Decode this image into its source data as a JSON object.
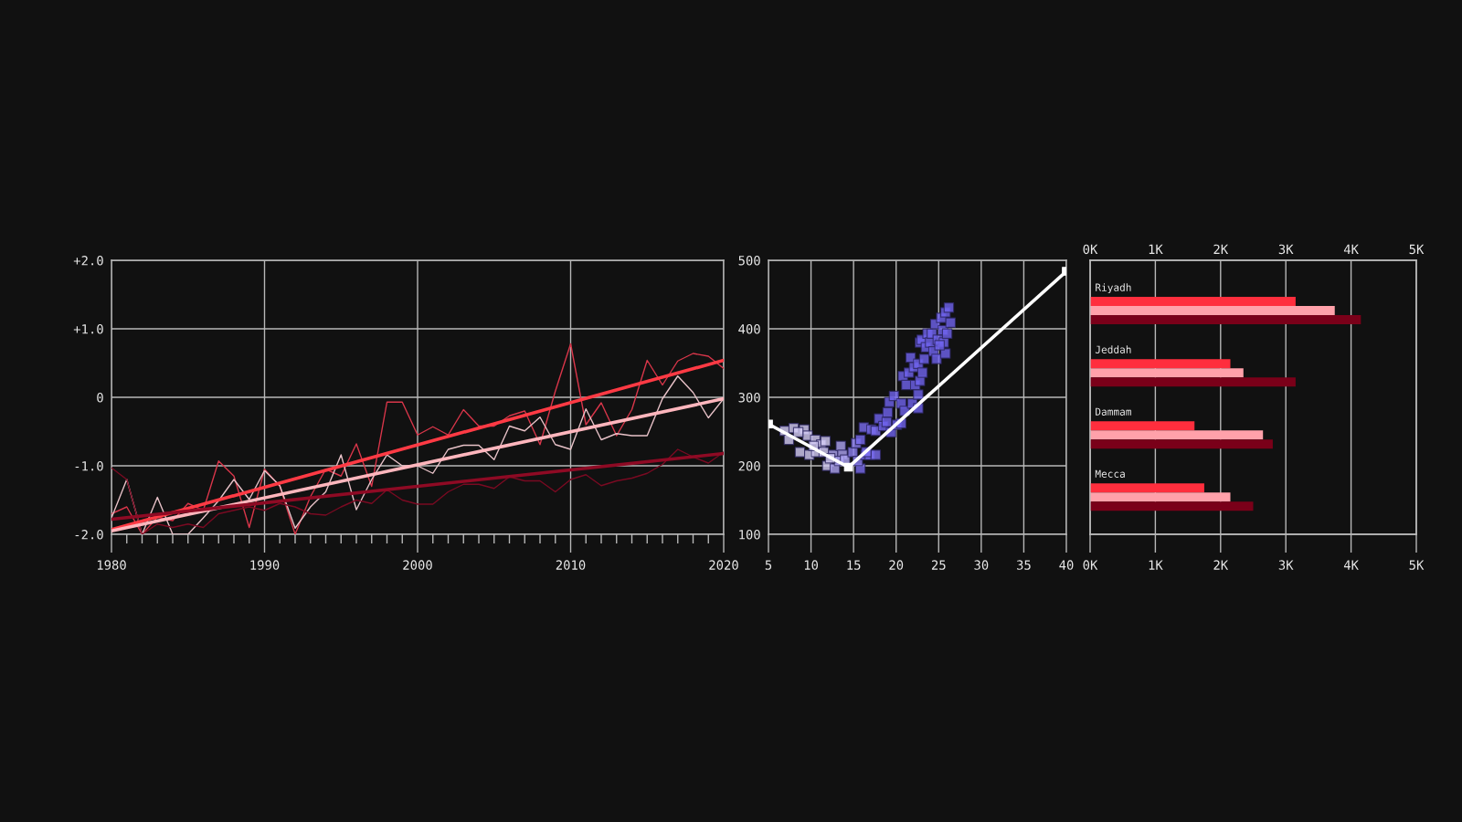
{
  "chart_data": [
    {
      "type": "line",
      "x": [
        1980,
        1981,
        1982,
        1983,
        1984,
        1985,
        1986,
        1987,
        1988,
        1989,
        1990,
        1991,
        1992,
        1993,
        1994,
        1995,
        1996,
        1997,
        1998,
        1999,
        2000,
        2001,
        2002,
        2003,
        2004,
        2005,
        2006,
        2007,
        2008,
        2009,
        2010,
        2011,
        2012,
        2013,
        2014,
        2015,
        2016,
        2017,
        2018,
        2019,
        2020
      ],
      "series": [
        {
          "color": "#d9364a",
          "values": [
            -1.7,
            -1.6,
            -2.0,
            -1.75,
            -1.8,
            -1.55,
            -1.65,
            -0.93,
            -1.15,
            -1.9,
            -1.05,
            -1.3,
            -2.0,
            -1.45,
            -1.05,
            -1.15,
            -0.68,
            -1.3,
            -0.07,
            -0.07,
            -0.55,
            -0.43,
            -0.55,
            -0.18,
            -0.42,
            -0.42,
            -0.27,
            -0.2,
            -0.69,
            0.09,
            0.78,
            -0.4,
            -0.08,
            -0.56,
            -0.18,
            0.54,
            0.18,
            0.53,
            0.64,
            0.6,
            0.42
          ]
        },
        {
          "color": "#e8c2c8",
          "values": [
            -1.76,
            -1.2,
            -2.0,
            -1.46,
            -2.0,
            -2.0,
            -1.76,
            -1.51,
            -1.2,
            -1.49,
            -1.07,
            -1.29,
            -1.91,
            -1.6,
            -1.38,
            -0.84,
            -1.64,
            -1.2,
            -0.84,
            -1.0,
            -1.0,
            -1.11,
            -0.76,
            -0.7,
            -0.7,
            -0.91,
            -0.42,
            -0.49,
            -0.29,
            -0.69,
            -0.76,
            -0.17,
            -0.62,
            -0.53,
            -0.56,
            -0.56,
            -0.02,
            0.31,
            0.07,
            -0.3,
            -0.02
          ]
        },
        {
          "color": "#7a0a22",
          "values": [
            -1.03,
            -1.2,
            -2.0,
            -1.85,
            -1.9,
            -1.85,
            -1.9,
            -1.7,
            -1.65,
            -1.6,
            -1.65,
            -1.55,
            -1.6,
            -1.7,
            -1.72,
            -1.6,
            -1.5,
            -1.55,
            -1.35,
            -1.5,
            -1.56,
            -1.56,
            -1.38,
            -1.27,
            -1.27,
            -1.33,
            -1.16,
            -1.22,
            -1.22,
            -1.38,
            -1.2,
            -1.13,
            -1.29,
            -1.22,
            -1.18,
            -1.11,
            -0.98,
            -0.76,
            -0.87,
            -0.96,
            -0.8
          ]
        },
        {
          "color": "#ff3a44",
          "x": [
            1980,
            2020
          ],
          "values": [
            -1.93,
            0.54
          ]
        },
        {
          "color": "#ffb6bd",
          "x": [
            1980,
            2020
          ],
          "values": [
            -1.95,
            -0.02
          ]
        },
        {
          "color": "#8e0a24",
          "x": [
            1980,
            2020
          ],
          "values": [
            -1.78,
            -0.82
          ]
        }
      ],
      "xlim": [
        1980,
        2020
      ],
      "xticks": [
        1980,
        {
          "value": 1981,
          "label": null
        },
        {
          "value": 1982,
          "label": null
        },
        {
          "value": 1983,
          "label": null
        },
        {
          "value": 1984,
          "label": null
        },
        {
          "value": 1985,
          "label": null
        },
        {
          "value": 1986,
          "label": null
        },
        {
          "value": 1987,
          "label": null
        },
        {
          "value": 1988,
          "label": null
        },
        {
          "value": 1989,
          "label": null
        },
        1990,
        {
          "value": 1991,
          "label": null
        },
        {
          "value": 1992,
          "label": null
        },
        {
          "value": 1993,
          "label": null
        },
        {
          "value": 1994,
          "label": null
        },
        {
          "value": 1995,
          "label": null
        },
        {
          "value": 1996,
          "label": null
        },
        {
          "value": 1997,
          "label": null
        },
        {
          "value": 1998,
          "label": null
        },
        {
          "value": 1999,
          "label": null
        },
        2000,
        {
          "value": 2001,
          "label": null
        },
        {
          "value": 2002,
          "label": null
        },
        {
          "value": 2003,
          "label": null
        },
        {
          "value": 2004,
          "label": null
        },
        {
          "value": 2005,
          "label": null
        },
        {
          "value": 2006,
          "label": null
        },
        {
          "value": 2007,
          "label": null
        },
        {
          "value": 2008,
          "label": null
        },
        {
          "value": 2009,
          "label": null
        },
        2010,
        {
          "value": 2011,
          "label": null
        },
        {
          "value": 2012,
          "label": null
        },
        {
          "value": 2013,
          "label": null
        },
        {
          "value": 2014,
          "label": null
        },
        {
          "value": 2015,
          "label": null
        },
        {
          "value": 2016,
          "label": null
        },
        {
          "value": 2017,
          "label": null
        },
        {
          "value": 2018,
          "label": null
        },
        {
          "value": 2019,
          "label": null
        },
        2020
      ],
      "ylim": [
        -2,
        2
      ],
      "yticks": [
        {
          "value": 2,
          "label": "+2.0"
        },
        {
          "value": 1,
          "label": "+1.0"
        },
        0,
        {
          "value": -1,
          "label": "-1.0"
        },
        {
          "value": -2,
          "label": "-2.0"
        }
      ],
      "grid": true
    },
    {
      "type": "scatter",
      "marker": "square",
      "series": [
        {
          "type": "scatter",
          "x": [
            6.9,
            7.96,
            7.4,
            9.2,
            9.6,
            8.7,
            9.8,
            10.5,
            11.2,
            11.7,
            10.6,
            11.5,
            11.9,
            12.8,
            12.6,
            13.5,
            13.7,
            13.3,
            14.0,
            12.25,
            8.5,
            10.3,
            14.9,
            15.3,
            15.8,
            15.8,
            15.5,
            16.4,
            16.9,
            17.6,
            16.5,
            16.2,
            17.1,
            17.6,
            18.0,
            18.5,
            18.9,
            19.0,
            19.2,
            19.75,
            19.4,
            20.1,
            20.6,
            20.6,
            21.0,
            20.8,
            21.2,
            21.5,
            21.9,
            22.1,
            22.25,
            22.6,
            22.8,
            21.7,
            22.6,
            23.1,
            23.3,
            22.8,
            23.0,
            23.5,
            22.6,
            23.7,
            24.0,
            24.4,
            24.2,
            24.6,
            24.75,
            24.9,
            25.5,
            25.3,
            25.8,
            26.2,
            26.4,
            25.8,
            25.6,
            25.1,
            26.0
          ],
          "values": [
            251,
            255,
            238,
            253,
            244,
            220,
            216,
            238,
            231,
            236,
            220,
            220,
            200,
            196,
            216,
            229,
            216,
            207,
            209,
            211,
            249,
            229,
            220,
            233,
            238,
            196,
            207,
            216,
            216,
            216,
            220,
            256,
            253,
            251,
            269,
            258,
            264,
            278,
            293,
            302,
            249,
            260,
            262,
            291,
            280,
            331,
            318,
            336,
            291,
            344,
            318,
            304,
            324,
            358,
            349,
            336,
            356,
            380,
            384,
            373,
            284,
            393,
            380,
            367,
            393,
            407,
            356,
            384,
            398,
            416,
            424,
            431,
            409,
            364,
            380,
            376,
            393
          ],
          "colors": [
            "#d4cdf6",
            "#d4cdf6",
            "#d4cdf6",
            "#d4cdf6",
            "#d4cdf6",
            "#d4cdf6",
            "#d4cdf6",
            "#d4cdf6",
            "#d4cdf6",
            "#d4cdf6",
            "#d4cdf6",
            "#d4cdf6",
            "#d4cdf6",
            "#aea4f3",
            "#aea4f3",
            "#aea4f3",
            "#aea4f3",
            "#aea4f3",
            "#aea4f3",
            "#d4cdf6",
            "#d4cdf6",
            "#d4cdf6",
            "#8c80f0",
            "#8c80f0",
            "#7a6df0",
            "#7a6df0",
            "#8c80f0",
            "#7a6df0",
            "#7a6df0",
            "#7a6df0",
            "#7a6df0",
            "#7a6df0",
            "#7a6df0",
            "#7a6df0",
            "#7064ef",
            "#7064ef",
            "#7064ef",
            "#7064ef",
            "#7064ef",
            "#7064ef",
            "#7064ef",
            "#7064ef",
            "#7064ef",
            "#7064ef",
            "#7064ef",
            "#7064ef",
            "#7064ef",
            "#7064ef",
            "#7064ef",
            "#7064ef",
            "#7064ef",
            "#7064ef",
            "#7064ef",
            "#7064ef",
            "#7064ef",
            "#7064ef",
            "#7064ef",
            "#7064ef",
            "#7064ef",
            "#7064ef",
            "#7064ef",
            "#7064ef",
            "#7064ef",
            "#7064ef",
            "#7064ef",
            "#7064ef",
            "#7064ef",
            "#7064ef",
            "#7064ef",
            "#7064ef",
            "#7064ef",
            "#7064ef",
            "#7064ef",
            "#7064ef",
            "#7064ef",
            "#7064ef",
            "#7064ef"
          ]
        },
        {
          "type": "line",
          "color": "#ffffff",
          "x": [
            5,
            14.4,
            40
          ],
          "values": [
            261,
            198,
            484
          ]
        }
      ],
      "xlim": [
        5,
        40
      ],
      "xticks": [
        5,
        10,
        15,
        20,
        25,
        30,
        35,
        40
      ],
      "ylim": [
        100,
        500
      ],
      "yticks": [
        500,
        400,
        300,
        200,
        100
      ],
      "grid": true
    },
    {
      "type": "bar",
      "orientation": "horizontal",
      "categories": [
        "Riyadh",
        "Jeddah",
        "Dammam",
        "Mecca"
      ],
      "series": [
        {
          "color": "#ff2e3d",
          "values": [
            3150,
            2150,
            1600,
            1750
          ]
        },
        {
          "color": "#ffa1aa",
          "values": [
            3750,
            2350,
            2650,
            2150
          ]
        },
        {
          "color": "#7a0019",
          "values": [
            4150,
            3150,
            2800,
            2500
          ]
        }
      ],
      "xlim": [
        0,
        5000
      ],
      "xticks": [
        {
          "value": 0,
          "label": "0K"
        },
        {
          "value": 1000,
          "label": "1K"
        },
        {
          "value": 2000,
          "label": "2K"
        },
        {
          "value": 3000,
          "label": "3K"
        },
        {
          "value": 4000,
          "label": "4K"
        },
        {
          "value": 5000,
          "label": "5K"
        }
      ],
      "x2lim": [
        0,
        5000
      ],
      "x2ticks": [
        {
          "value": 0,
          "label": "0K"
        },
        {
          "value": 1000,
          "label": "1K"
        },
        {
          "value": 2000,
          "label": "2K"
        },
        {
          "value": 3000,
          "label": "3K"
        },
        {
          "value": 4000,
          "label": "4K"
        },
        {
          "value": 5000,
          "label": "5K"
        }
      ],
      "grid": "x"
    }
  ]
}
